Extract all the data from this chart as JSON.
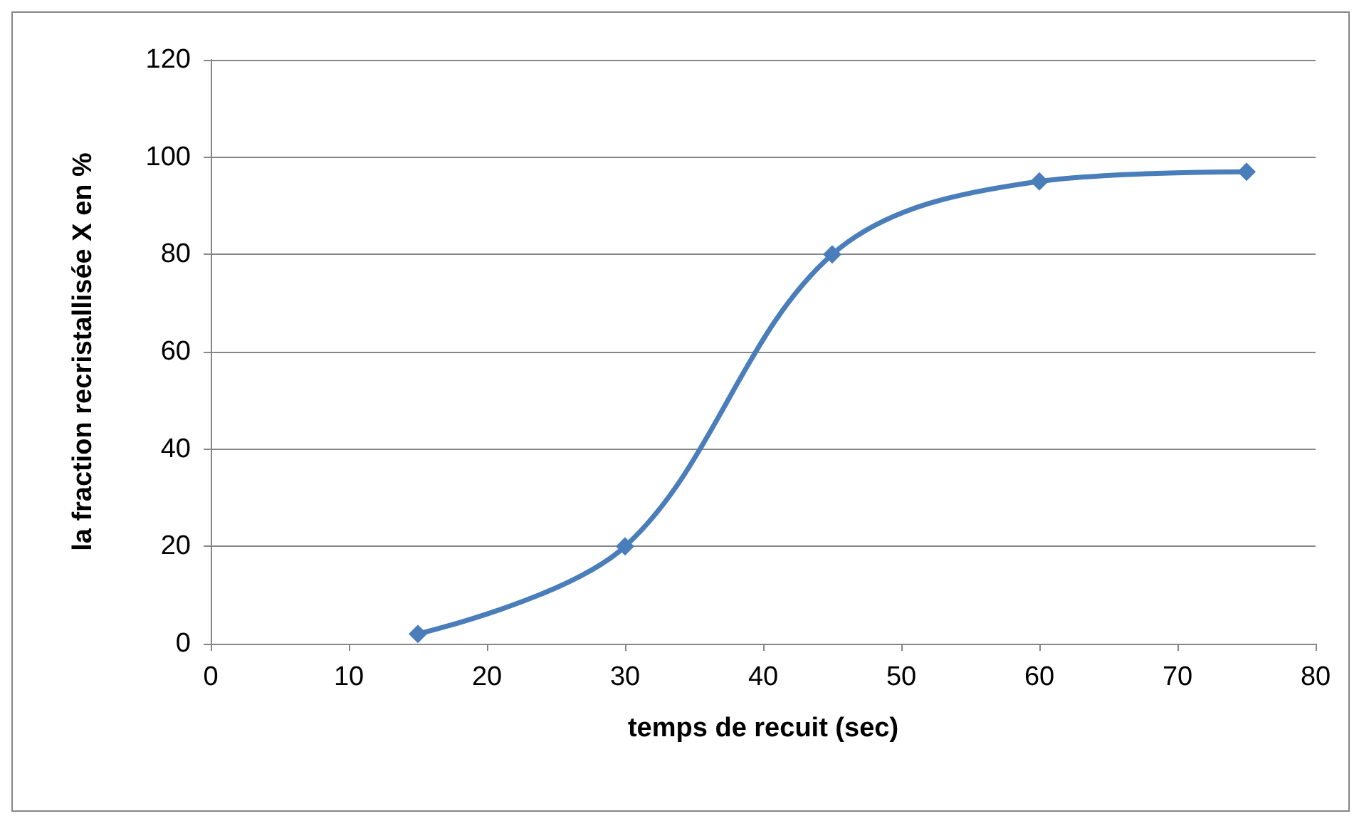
{
  "chart_data": {
    "type": "line",
    "xlabel": "temps de recuit (sec)",
    "ylabel": "la fraction recristallisée X en %",
    "x": [
      15,
      30,
      45,
      60,
      75
    ],
    "series": [
      {
        "color": "#4a7ebb",
        "values": [
          2,
          20,
          80,
          95,
          97
        ]
      }
    ],
    "xlim": [
      0,
      80
    ],
    "xticks": [
      0,
      10,
      20,
      30,
      40,
      50,
      60,
      70,
      80
    ],
    "ylim": [
      0,
      120
    ],
    "yticks": [
      0,
      20,
      40,
      60,
      80,
      100,
      120
    ],
    "grid": "y",
    "marker": "diamond",
    "line_style": "solid"
  }
}
